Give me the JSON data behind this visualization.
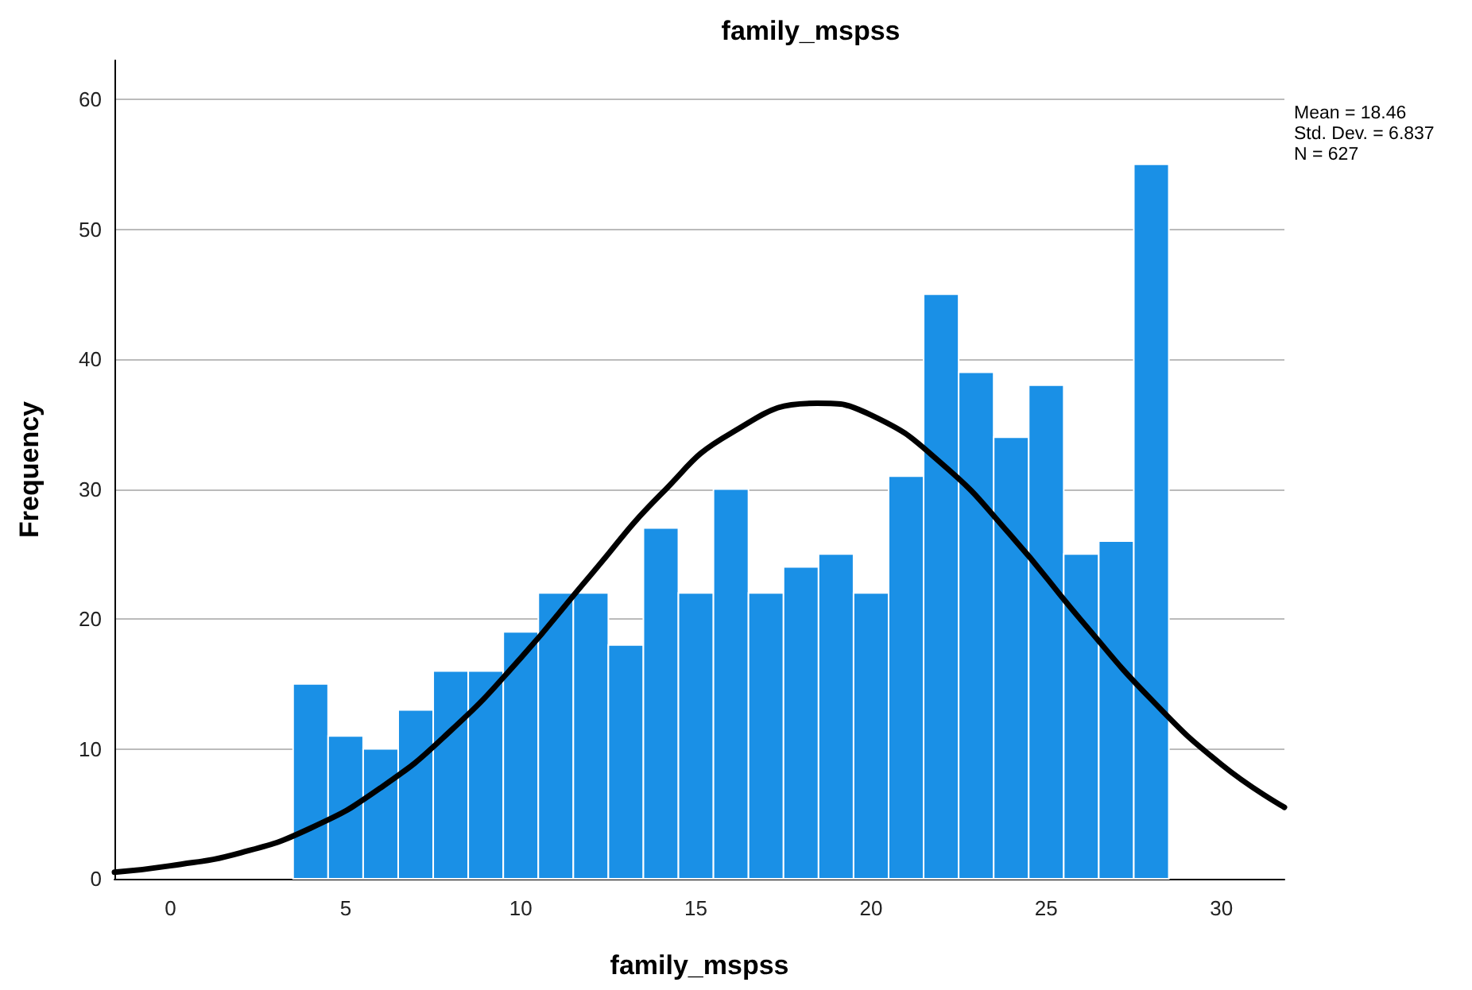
{
  "chart_data": {
    "type": "histogram",
    "title": "family_mspss",
    "xlabel": "family_mspss",
    "ylabel": "Frequency",
    "annotations": [
      "Mean = 18.46",
      "Std. Dev. = 6.837",
      "N = 627"
    ],
    "series": [
      {
        "color": "#1a90e6",
        "bins": [
          3.5,
          4.5,
          5.5,
          6.5,
          7.5,
          8.5,
          9.5,
          10.5,
          11.5,
          12.5,
          13.5,
          14.5,
          15.5,
          16.5,
          17.5,
          18.5,
          19.5,
          20.5,
          21.5,
          22.5,
          23.5,
          24.5,
          25.5,
          26.5,
          27.5,
          28.5
        ],
        "values": [
          15,
          11,
          10,
          13,
          16,
          16,
          19,
          22,
          22,
          18,
          27,
          22,
          30,
          22,
          24,
          25,
          22,
          31,
          45,
          39,
          34,
          38,
          25,
          26,
          55
        ]
      },
      {
        "type": "line",
        "color": "#000000",
        "x": [
          -1.6,
          0,
          2,
          4,
          6,
          8,
          10,
          12,
          14,
          16,
          18.46,
          20,
          22,
          24,
          26,
          28,
          30,
          31.8
        ],
        "values": [
          0.5,
          1,
          2,
          3.9,
          7,
          11.4,
          17,
          23.4,
          29.6,
          34.3,
          36.6,
          35.7,
          32,
          26.4,
          19.9,
          13.8,
          8.8,
          5.5
        ]
      }
    ],
    "xlim": [
      -1.6,
      31.8
    ],
    "xticks": [
      0,
      5,
      10,
      15,
      20,
      25,
      30
    ],
    "ylim": [
      0,
      63
    ],
    "yticks": [
      0,
      10,
      20,
      30,
      40,
      50,
      60
    ],
    "grid": "y",
    "marker": "none",
    "line_style": "solid"
  }
}
